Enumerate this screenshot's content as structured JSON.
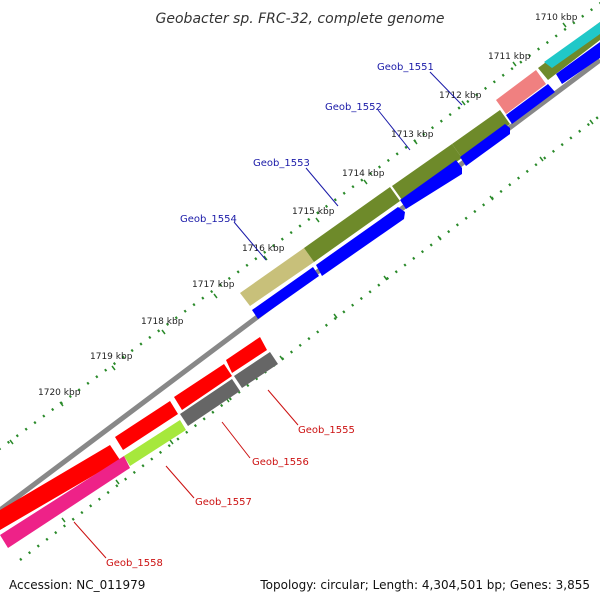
{
  "title": "Geobacter sp. FRC-32, complete genome",
  "footer": {
    "accession": "Accession: NC_011979",
    "topology": "Topology: circular; Length: 4,304,501 bp; Genes: 3,855"
  },
  "ticks": [
    "1710 kbp",
    "1711 kbp",
    "1712 kbp",
    "1713 kbp",
    "1714 kbp",
    "1715 kbp",
    "1716 kbp",
    "1717 kbp",
    "1718 kbp",
    "1719 kbp",
    "1720 kbp"
  ],
  "genes": [
    {
      "name": "Geob_1551",
      "color": "blue"
    },
    {
      "name": "Geob_1552",
      "color": "blue"
    },
    {
      "name": "Geob_1553",
      "color": "blue"
    },
    {
      "name": "Geob_1554",
      "color": "blue"
    },
    {
      "name": "Geob_1555",
      "color": "red"
    },
    {
      "name": "Geob_1556",
      "color": "red"
    },
    {
      "name": "Geob_1557",
      "color": "red"
    },
    {
      "name": "Geob_1558",
      "color": "red"
    }
  ],
  "colors": {
    "olive": "#6e8a2a",
    "tan": "#c8c07a",
    "salmon": "#f08080",
    "cyan": "#20c8c8",
    "blue": "#0000ff",
    "red": "#ff0000",
    "gray": "#666666",
    "lime": "#a6e83c",
    "magenta": "#ee2288",
    "tick_green": "#2a8a2a",
    "backbone": "#888888"
  }
}
